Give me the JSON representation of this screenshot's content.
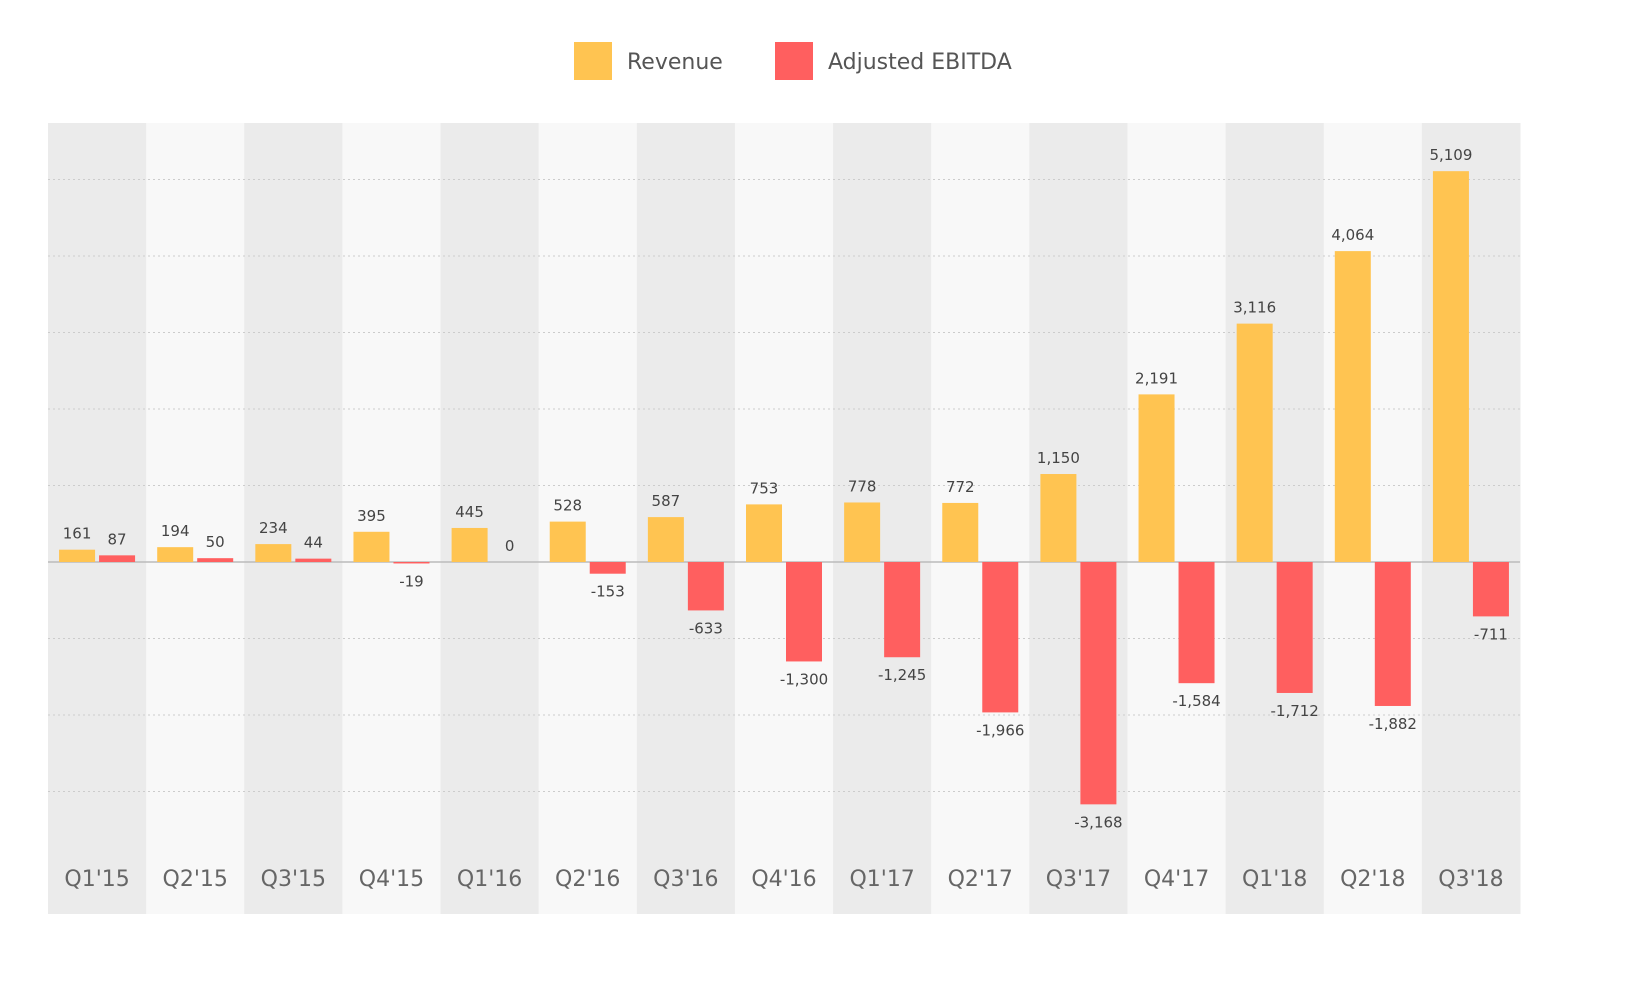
{
  "chart_data": {
    "type": "bar",
    "categories": [
      "Q1'15",
      "Q2'15",
      "Q3'15",
      "Q4'15",
      "Q1'16",
      "Q2'16",
      "Q3'16",
      "Q4'16",
      "Q1'17",
      "Q2'17",
      "Q3'17",
      "Q4'17",
      "Q1'18",
      "Q2'18",
      "Q3'18"
    ],
    "series": [
      {
        "name": "Revenue",
        "color": "#FFC451",
        "values": [
          161,
          194,
          234,
          395,
          445,
          528,
          587,
          753,
          778,
          772,
          1150,
          2191,
          3116,
          4064,
          5109
        ],
        "labels": [
          "161",
          "194",
          "234",
          "395",
          "445",
          "528",
          "587",
          "753",
          "778",
          "772",
          "1,150",
          "2,191",
          "3,116",
          "4,064",
          "5,109"
        ]
      },
      {
        "name": "Adjusted EBITDA",
        "color": "#FF5F5F",
        "values": [
          87,
          50,
          44,
          -19,
          0,
          -153,
          -633,
          -1300,
          -1245,
          -1966,
          -3168,
          -1584,
          -1712,
          -1882,
          -711
        ],
        "labels": [
          "87",
          "50",
          "44",
          "-19",
          "0",
          "-153",
          "-633",
          "-1,300",
          "-1,245",
          "-1,966",
          "-3,168",
          "-1,584",
          "-1,712",
          "-1,882",
          "-711"
        ]
      }
    ],
    "legend_position": "top-center",
    "grid": true,
    "ylim": [
      -3300,
      5700
    ],
    "colors": {
      "band_dark": "#EBEBEB",
      "band_light": "#F8F8F8",
      "gridline": "#CCCCCC",
      "zero_line": "#BBBBBB"
    }
  }
}
